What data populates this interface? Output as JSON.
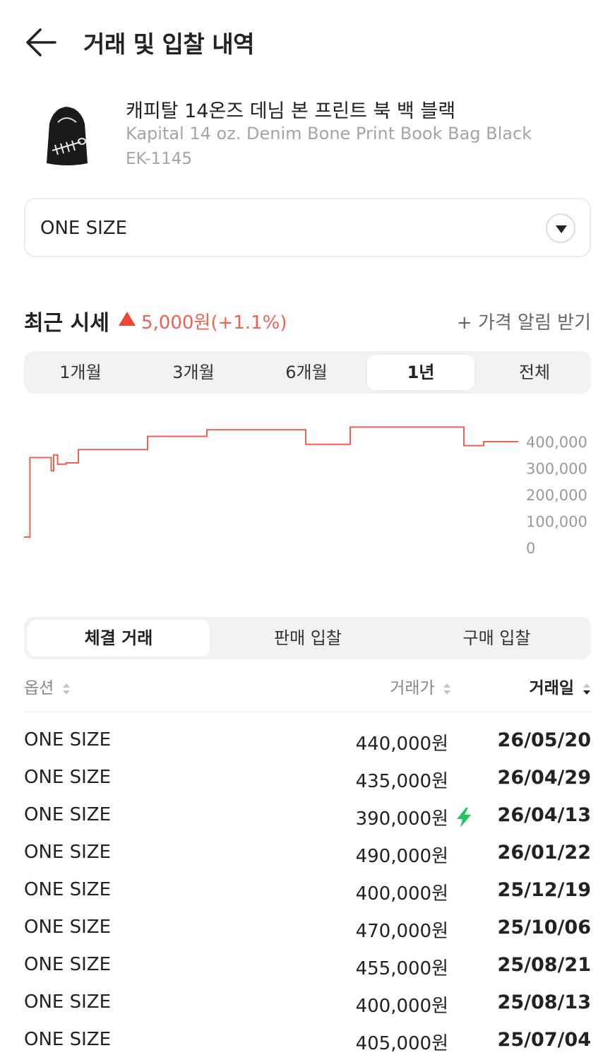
{
  "header": {
    "title": "거래 및 입찰 내역",
    "back_icon": "arrow-left-icon"
  },
  "product": {
    "name_ko": "캐피탈 14온즈 데님 본 프린트 북 백 블랙",
    "name_en": "Kapital 14 oz. Denim Bone Print Book Bag Black",
    "code": "EK-1145"
  },
  "size_select": {
    "value": "ONE SIZE",
    "icon": "chevron-down-icon"
  },
  "recent": {
    "label": "최근 시세",
    "change_icon": "triangle-up-icon",
    "change_text": "5,000원(+1.1%)",
    "change_color": "#ef6253",
    "alert_link": "+ 가격 알림 받기"
  },
  "period_tabs": [
    "1개월",
    "3개월",
    "6개월",
    "1년",
    "전체"
  ],
  "period_active": "1년",
  "chart_data": {
    "type": "line",
    "line_color": "#ef6253",
    "y_ticks": [
      "400,000",
      "300,000",
      "200,000",
      "100,000",
      "0"
    ],
    "ylim": [
      0,
      400000
    ],
    "x_relative": [
      0,
      0.012,
      0.055,
      0.06,
      0.068,
      0.072,
      0.085,
      0.11,
      0.115,
      0.13,
      0.25,
      0.37,
      0.57,
      0.66,
      0.89,
      0.93,
      1.0
    ],
    "values": [
      40000,
      340000,
      290000,
      350000,
      315000,
      315000,
      320000,
      370000,
      370000,
      370000,
      420000,
      445000,
      390000,
      455000,
      385000,
      400000,
      400000
    ]
  },
  "trade_tabs": [
    "체결 거래",
    "판매 입찰",
    "구매 입찰"
  ],
  "trade_tab_active": "체결 거래",
  "table": {
    "headers": {
      "option": "옵션",
      "price": "거래가",
      "date": "거래일"
    },
    "sort_icon": "sort-arrows-icon",
    "bolt_icon": "lightning-bolt-icon",
    "bolt_color": "#22c55e",
    "rows": [
      {
        "option": "ONE SIZE",
        "price": "440,000원",
        "date": "26/05/20",
        "quick": false
      },
      {
        "option": "ONE SIZE",
        "price": "435,000원",
        "date": "26/04/29",
        "quick": false
      },
      {
        "option": "ONE SIZE",
        "price": "390,000원",
        "date": "26/04/13",
        "quick": true
      },
      {
        "option": "ONE SIZE",
        "price": "490,000원",
        "date": "26/01/22",
        "quick": false
      },
      {
        "option": "ONE SIZE",
        "price": "400,000원",
        "date": "25/12/19",
        "quick": false
      },
      {
        "option": "ONE SIZE",
        "price": "470,000원",
        "date": "25/10/06",
        "quick": false
      },
      {
        "option": "ONE SIZE",
        "price": "455,000원",
        "date": "25/08/21",
        "quick": false
      },
      {
        "option": "ONE SIZE",
        "price": "400,000원",
        "date": "25/08/13",
        "quick": false
      },
      {
        "option": "ONE SIZE",
        "price": "405,000원",
        "date": "25/07/04",
        "quick": false
      }
    ]
  }
}
